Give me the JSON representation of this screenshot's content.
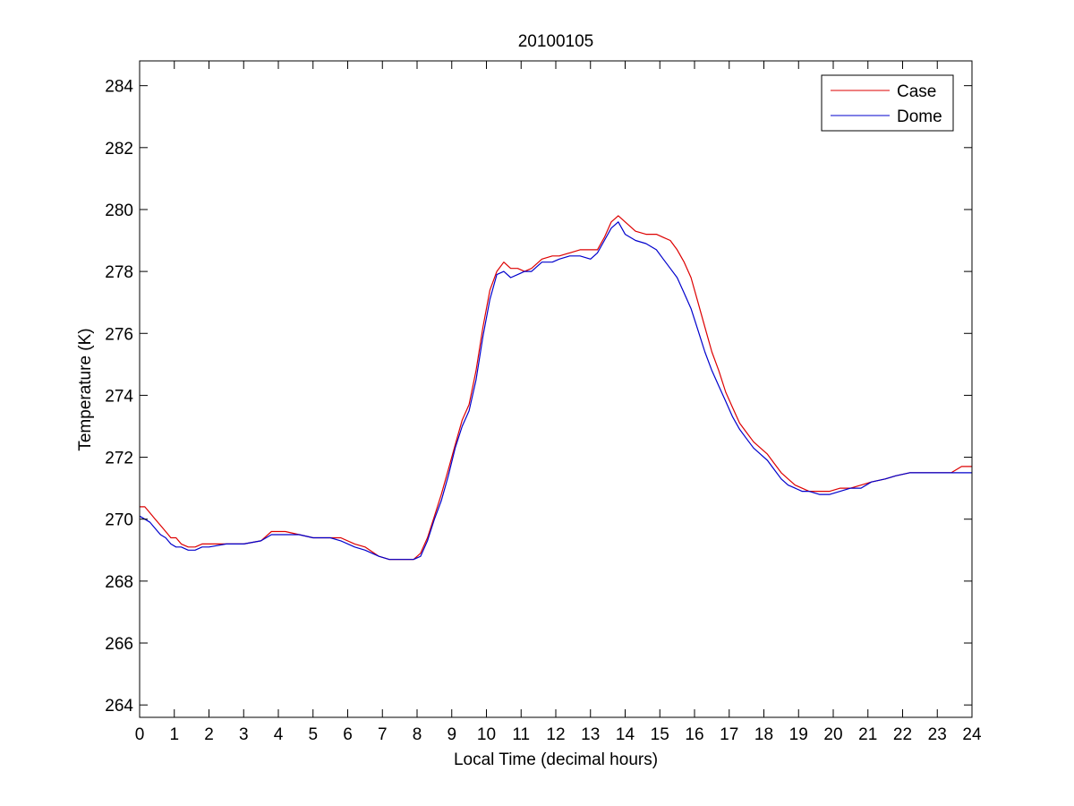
{
  "chart_data": {
    "type": "line",
    "title": "20100105",
    "xlabel": "Local Time (decimal hours)",
    "ylabel": "Temperature (K)",
    "xlim": [
      0,
      24
    ],
    "ylim": [
      263.6,
      284.8
    ],
    "xticks": [
      0,
      1,
      2,
      3,
      4,
      5,
      6,
      7,
      8,
      9,
      10,
      11,
      12,
      13,
      14,
      15,
      16,
      17,
      18,
      19,
      20,
      21,
      22,
      23,
      24
    ],
    "yticks": [
      264,
      266,
      268,
      270,
      272,
      274,
      276,
      278,
      280,
      282,
      284
    ],
    "grid": false,
    "legend_position": "top-right",
    "series": [
      {
        "name": "Case",
        "color": "#dd0000",
        "x": [
          0,
          0.15,
          0.3,
          0.45,
          0.6,
          0.75,
          0.9,
          1.05,
          1.2,
          1.4,
          1.6,
          1.8,
          2.0,
          2.5,
          3.0,
          3.5,
          3.8,
          4.2,
          4.6,
          5.0,
          5.5,
          5.8,
          6.2,
          6.5,
          6.9,
          7.2,
          7.6,
          7.9,
          8.1,
          8.3,
          8.5,
          8.7,
          8.9,
          9.1,
          9.3,
          9.5,
          9.7,
          9.9,
          10.1,
          10.3,
          10.5,
          10.7,
          10.9,
          11.1,
          11.3,
          11.6,
          11.9,
          12.1,
          12.4,
          12.7,
          13.0,
          13.2,
          13.4,
          13.6,
          13.8,
          14.0,
          14.3,
          14.6,
          14.9,
          15.1,
          15.3,
          15.5,
          15.7,
          15.9,
          16.1,
          16.3,
          16.5,
          16.7,
          16.9,
          17.1,
          17.3,
          17.5,
          17.7,
          17.9,
          18.1,
          18.3,
          18.5,
          18.7,
          18.9,
          19.1,
          19.3,
          19.6,
          19.9,
          20.2,
          20.5,
          20.8,
          21.1,
          21.5,
          21.8,
          22.2,
          22.6,
          23.0,
          23.4,
          23.7,
          24.0
        ],
        "y": [
          270.4,
          270.4,
          270.2,
          270.0,
          269.8,
          269.6,
          269.4,
          269.4,
          269.2,
          269.1,
          269.1,
          269.2,
          269.2,
          269.2,
          269.2,
          269.3,
          269.6,
          269.6,
          269.5,
          269.4,
          269.4,
          269.4,
          269.2,
          269.1,
          268.8,
          268.7,
          268.7,
          268.7,
          268.9,
          269.4,
          270.1,
          270.8,
          271.6,
          272.4,
          273.2,
          273.7,
          274.8,
          276.2,
          277.4,
          278.0,
          278.3,
          278.1,
          278.1,
          278.0,
          278.1,
          278.4,
          278.5,
          278.5,
          278.6,
          278.7,
          278.7,
          278.7,
          279.1,
          279.6,
          279.8,
          279.6,
          279.3,
          279.2,
          279.2,
          279.1,
          279.0,
          278.7,
          278.3,
          277.8,
          277.0,
          276.2,
          275.4,
          274.8,
          274.1,
          273.6,
          273.1,
          272.8,
          272.5,
          272.3,
          272.1,
          271.8,
          271.5,
          271.3,
          271.1,
          271.0,
          270.9,
          270.9,
          270.9,
          271.0,
          271.0,
          271.1,
          271.2,
          271.3,
          271.4,
          271.5,
          271.5,
          271.5,
          271.5,
          271.7,
          271.7
        ]
      },
      {
        "name": "Dome",
        "color": "#0000cc",
        "x": [
          0,
          0.15,
          0.3,
          0.45,
          0.6,
          0.75,
          0.9,
          1.05,
          1.2,
          1.4,
          1.6,
          1.8,
          2.0,
          2.5,
          3.0,
          3.5,
          3.8,
          4.2,
          4.6,
          5.0,
          5.5,
          5.8,
          6.2,
          6.5,
          6.9,
          7.2,
          7.6,
          7.9,
          8.1,
          8.3,
          8.5,
          8.7,
          8.9,
          9.1,
          9.3,
          9.5,
          9.7,
          9.9,
          10.1,
          10.3,
          10.5,
          10.7,
          10.9,
          11.1,
          11.3,
          11.6,
          11.9,
          12.1,
          12.4,
          12.7,
          13.0,
          13.2,
          13.4,
          13.6,
          13.8,
          14.0,
          14.3,
          14.6,
          14.9,
          15.1,
          15.3,
          15.5,
          15.7,
          15.9,
          16.1,
          16.3,
          16.5,
          16.7,
          16.9,
          17.1,
          17.3,
          17.5,
          17.7,
          17.9,
          18.1,
          18.3,
          18.5,
          18.7,
          18.9,
          19.1,
          19.3,
          19.6,
          19.9,
          20.2,
          20.5,
          20.8,
          21.1,
          21.5,
          21.8,
          22.2,
          22.6,
          23.0,
          23.4,
          23.7,
          24.0
        ],
        "y": [
          270.1,
          270.0,
          269.9,
          269.7,
          269.5,
          269.4,
          269.2,
          269.1,
          269.1,
          269.0,
          269.0,
          269.1,
          269.1,
          269.2,
          269.2,
          269.3,
          269.5,
          269.5,
          269.5,
          269.4,
          269.4,
          269.3,
          269.1,
          269.0,
          268.8,
          268.7,
          268.7,
          268.7,
          268.8,
          269.3,
          270.0,
          270.6,
          271.4,
          272.3,
          273.0,
          273.5,
          274.5,
          275.9,
          277.1,
          277.9,
          278.0,
          277.8,
          277.9,
          278.0,
          278.0,
          278.3,
          278.3,
          278.4,
          278.5,
          278.5,
          278.4,
          278.6,
          279.0,
          279.4,
          279.6,
          279.2,
          279.0,
          278.9,
          278.7,
          278.4,
          278.1,
          277.8,
          277.3,
          276.8,
          276.1,
          275.4,
          274.8,
          274.3,
          273.8,
          273.3,
          272.9,
          272.6,
          272.3,
          272.1,
          271.9,
          271.6,
          271.3,
          271.1,
          271.0,
          270.9,
          270.9,
          270.8,
          270.8,
          270.9,
          271.0,
          271.0,
          271.2,
          271.3,
          271.4,
          271.5,
          271.5,
          271.5,
          271.5,
          271.5,
          271.5
        ]
      }
    ]
  }
}
